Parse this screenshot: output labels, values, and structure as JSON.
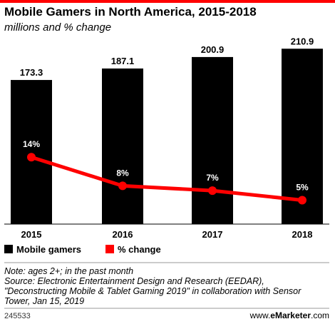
{
  "chart_data": {
    "type": "bar",
    "title": "Mobile Gamers in North America, 2015-2018",
    "subtitle": "millions and % change",
    "categories": [
      "2015",
      "2016",
      "2017",
      "2018"
    ],
    "series": [
      {
        "name": "Mobile gamers",
        "type": "bar",
        "values": [
          173.3,
          187.1,
          200.9,
          210.9
        ],
        "labels": [
          "173.3",
          "187.1",
          "200.9",
          "210.9"
        ],
        "color": "#000000"
      },
      {
        "name": "% change",
        "type": "line",
        "values": [
          14,
          8,
          7,
          5
        ],
        "labels": [
          "14%",
          "8%",
          "7%",
          "5%"
        ],
        "color": "#ff0000"
      }
    ],
    "ylim": [
      0,
      230
    ],
    "pct_ylim": [
      0,
      40
    ],
    "grid": false,
    "legend": "bottom-left"
  },
  "legend": {
    "items": [
      {
        "label": "Mobile gamers",
        "color": "#000000"
      },
      {
        "label": "% change",
        "color": "#ff0000"
      }
    ]
  },
  "notes": {
    "line1": "Note: ages 2+; in the past month",
    "line2": "Source: Electronic Entertainment Design and Research (EEDAR),",
    "line3": "\"Deconstructing Mobile & Tablet Gaming 2019\" in collaboration with Sensor",
    "line4": "Tower, Jan 15, 2019"
  },
  "footer": {
    "id": "245533",
    "brand_prefix": "www.",
    "brand_name": "eMarketer",
    "brand_suffix": ".com"
  },
  "colors": {
    "accent": "#ff0000",
    "bar": "#000000"
  }
}
